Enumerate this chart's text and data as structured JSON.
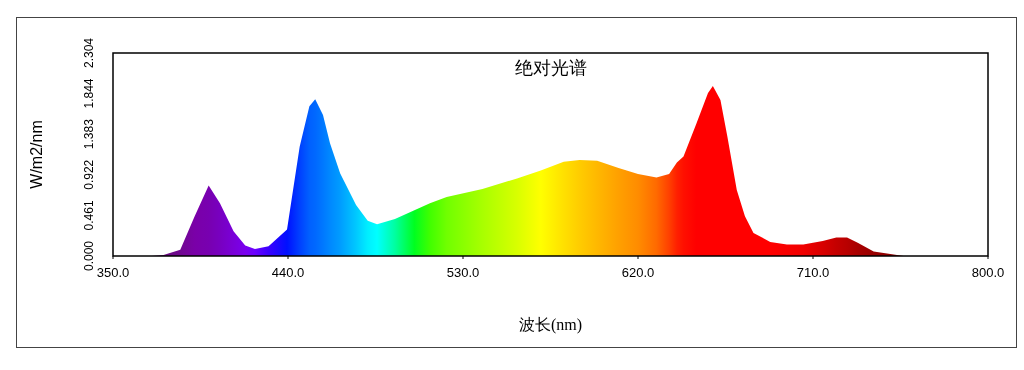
{
  "chart_data": {
    "type": "area",
    "title": "绝对光谱",
    "xlabel": "波长(nm)",
    "ylabel": "W/m2/nm",
    "xlim": [
      350,
      800
    ],
    "xticks": [
      {
        "value": 350,
        "label": "350.0"
      },
      {
        "value": 440,
        "label": "440.0"
      },
      {
        "value": 530,
        "label": "530.0"
      },
      {
        "value": 620,
        "label": "620.0"
      },
      {
        "value": 710,
        "label": "710.0"
      },
      {
        "value": 800,
        "label": "800.0"
      }
    ],
    "ylim": [
      0,
      2.304
    ],
    "yticks": [
      {
        "value": 0,
        "label": "0.000"
      },
      {
        "value": 0.461,
        "label": "0.461"
      },
      {
        "value": 0.922,
        "label": "0.922"
      },
      {
        "value": 1.383,
        "label": "1.383"
      },
      {
        "value": 1.844,
        "label": "1.844"
      },
      {
        "value": 2.304,
        "label": "2.304"
      }
    ],
    "series": [
      {
        "x": [
          350,
          370,
          376,
          384.6,
          392,
          399.2,
          405,
          412,
          418,
          423,
          430,
          439.5,
          446,
          451,
          454,
          458,
          461.6,
          466.8,
          475,
          481,
          485.8,
          495,
          505,
          513,
          521.6,
          540,
          557.8,
          570,
          581.8,
          590,
          599,
          610,
          620,
          629.5,
          636,
          640,
          643.4,
          650,
          656,
          658.5,
          662.4,
          666,
          670.8,
          675,
          679.4,
          688,
          696.6,
          705,
          715,
          722,
          727.5,
          733,
          741.2,
          756.6,
          800
        ],
        "values": [
          0,
          0,
          0.01,
          0.07,
          0.45,
          0.8,
          0.6,
          0.28,
          0.12,
          0.08,
          0.11,
          0.3,
          1.24,
          1.7,
          1.78,
          1.6,
          1.28,
          0.94,
          0.58,
          0.4,
          0.36,
          0.42,
          0.52,
          0.6,
          0.67,
          0.76,
          0.88,
          0.97,
          1.07,
          1.09,
          1.08,
          1.0,
          0.93,
          0.89,
          0.93,
          1.06,
          1.13,
          1.5,
          1.85,
          1.93,
          1.77,
          1.35,
          0.75,
          0.45,
          0.26,
          0.16,
          0.13,
          0.13,
          0.17,
          0.21,
          0.21,
          0.15,
          0.05,
          0,
          0
        ],
        "colors": [
          "#5a0a6a",
          "#5a0a6a",
          "#6a0a80",
          "#700890",
          "#7a00a8",
          "#7800b0",
          "#7800c0",
          "#7a00d8",
          "#7a00ee",
          "#6a00ff",
          "#3a00ff",
          "#0010ff",
          "#0040ff",
          "#0060ff",
          "#0068ff",
          "#0078ff",
          "#0088ff",
          "#009cff",
          "#00c8ff",
          "#00eeff",
          "#00ffff",
          "#00ffa0",
          "#00ff20",
          "#40ff00",
          "#70ff00",
          "#a8ff00",
          "#d8ff00",
          "#ffff00",
          "#ffe000",
          "#ffcc00",
          "#ffb800",
          "#ffa000",
          "#ff8c00",
          "#ff6a00",
          "#ff4000",
          "#ff2000",
          "#ff1000",
          "#ff0000",
          "#ff0000",
          "#ff0000",
          "#ff0000",
          "#ff0000",
          "#ff0000",
          "#ff0000",
          "#ff0000",
          "#ff0000",
          "#f80000",
          "#f00000",
          "#d80000",
          "#c40000",
          "#b80000",
          "#a80000",
          "#980000",
          "#880000",
          "#800000"
        ]
      }
    ]
  }
}
